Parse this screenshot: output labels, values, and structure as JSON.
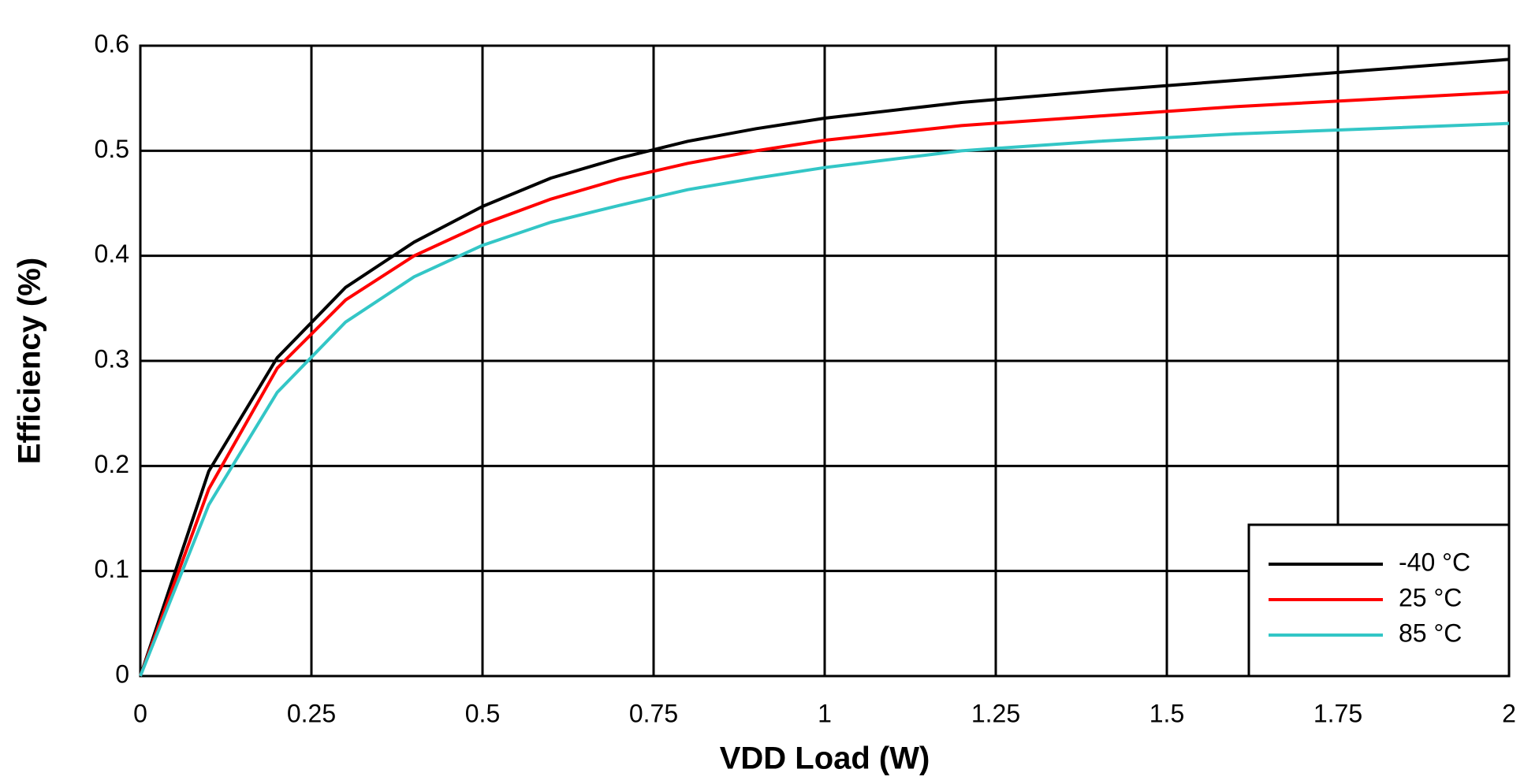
{
  "chart_data": {
    "type": "line",
    "x_label": "VDD Load (W)",
    "y_label": "Efficiency (%)",
    "x": [
      0,
      0.1,
      0.2,
      0.3,
      0.4,
      0.5,
      0.6,
      0.7,
      0.8,
      0.9,
      1.0,
      1.2,
      1.4,
      1.6,
      1.8,
      2.0
    ],
    "series": [
      {
        "name": "-40 °C",
        "color": "#000000",
        "values": [
          0,
          0.195,
          0.303,
          0.37,
          0.413,
          0.447,
          0.474,
          0.493,
          0.509,
          0.521,
          0.531,
          0.546,
          0.557,
          0.567,
          0.577,
          0.587
        ]
      },
      {
        "name": "25 °C",
        "color": "#ff0000",
        "values": [
          0,
          0.178,
          0.293,
          0.358,
          0.4,
          0.43,
          0.454,
          0.473,
          0.488,
          0.5,
          0.51,
          0.524,
          0.533,
          0.542,
          0.549,
          0.556
        ]
      },
      {
        "name": "85 °C",
        "color": "#33c6c6",
        "values": [
          0,
          0.163,
          0.27,
          0.337,
          0.38,
          0.41,
          0.432,
          0.448,
          0.463,
          0.474,
          0.484,
          0.5,
          0.509,
          0.516,
          0.521,
          0.526
        ]
      }
    ],
    "xlim": [
      0,
      2
    ],
    "xticks": [
      0,
      0.25,
      0.5,
      0.75,
      1,
      1.25,
      1.5,
      1.75,
      2
    ],
    "ylim": [
      0,
      0.6
    ],
    "yticks": [
      0,
      0.1,
      0.2,
      0.3,
      0.4,
      0.5,
      0.6
    ],
    "grid": true,
    "legend": "lower-right"
  }
}
